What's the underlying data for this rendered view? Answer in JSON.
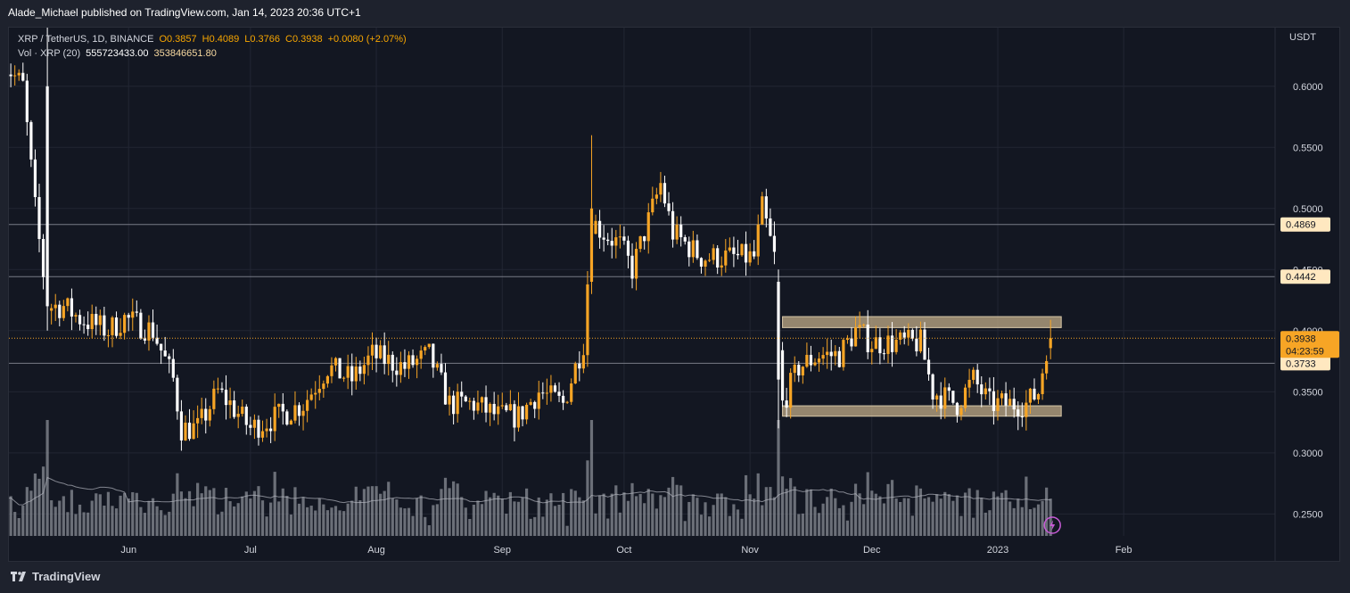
{
  "header": {
    "publisher": "Alade_Michael published on TradingView.com, Jan 14, 2023 20:36 UTC+1"
  },
  "legend": {
    "symbol": "XRP / TetherUS, 1D, BINANCE",
    "open": "O0.3857",
    "high": "H0.4089",
    "low": "L0.3766",
    "close": "C0.3938",
    "change": "+0.0080 (+2.07%)",
    "vol_label": "Vol · XRP (20)",
    "vol_value": "555723433.00",
    "vol_ma": "353846651.80"
  },
  "footer": {
    "brand": "TradingView"
  },
  "colors": {
    "up": "#f7a525",
    "down": "#ffffff",
    "volume": "#8a8d96",
    "zone": "#c8b28c",
    "price_tag": "#f7a525",
    "level_tag": "#ffe8c0"
  },
  "chart_data": {
    "type": "candlestick",
    "currency": "USDT",
    "y_ticks": [
      "0.2500",
      "0.3000",
      "0.3500",
      "0.4000",
      "0.4500",
      "0.5000",
      "0.5500",
      "0.6000"
    ],
    "x_labels": [
      "Jun",
      "Jul",
      "Aug",
      "Sep",
      "Oct",
      "Nov",
      "Dec",
      "2023",
      "Feb"
    ],
    "ylim": [
      0.232,
      0.648
    ],
    "current_price": {
      "value": 0.3938,
      "label": "0.3938",
      "countdown": "04:23:59"
    },
    "horizontal_levels": [
      {
        "value": 0.4869,
        "label": "0.4869"
      },
      {
        "value": 0.4442,
        "label": "0.4442"
      },
      {
        "value": 0.3733,
        "label": "0.3733"
      }
    ],
    "zones": [
      {
        "from_date": "2022-11-09",
        "to_date": "2023-01-14",
        "low": 0.4025,
        "high": 0.4115
      },
      {
        "from_date": "2022-11-09",
        "to_date": "2023-01-14",
        "low": 0.33,
        "high": 0.3385
      }
    ],
    "key_candles": [
      {
        "date": "2022-05-12",
        "open": 0.6,
        "high": 0.65,
        "low": 0.4,
        "close": 0.42
      },
      {
        "date": "2022-09-23",
        "open": 0.44,
        "high": 0.56,
        "low": 0.43,
        "close": 0.5
      },
      {
        "date": "2022-11-08",
        "open": 0.44,
        "high": 0.45,
        "low": 0.32,
        "close": 0.36
      },
      {
        "date": "2023-01-14",
        "open": 0.3857,
        "high": 0.4089,
        "low": 0.3766,
        "close": 0.3938
      }
    ]
  }
}
